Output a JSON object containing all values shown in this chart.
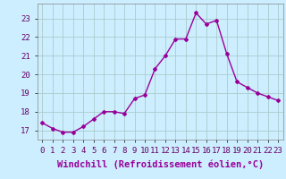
{
  "x": [
    0,
    1,
    2,
    3,
    4,
    5,
    6,
    7,
    8,
    9,
    10,
    11,
    12,
    13,
    14,
    15,
    16,
    17,
    18,
    19,
    20,
    21,
    22,
    23
  ],
  "y": [
    17.4,
    17.1,
    16.9,
    16.9,
    17.2,
    17.6,
    18.0,
    18.0,
    17.9,
    18.7,
    18.9,
    20.3,
    21.0,
    21.9,
    21.9,
    23.3,
    22.7,
    22.9,
    21.1,
    19.6,
    19.3,
    19.0,
    18.8,
    18.6
  ],
  "line_color": "#990099",
  "marker": "D",
  "marker_size": 2,
  "bg_color": "#cceeff",
  "grid_color": "#aacccc",
  "xlabel": "Windchill (Refroidissement éolien,°C)",
  "xlabel_fontsize": 7.5,
  "ylim": [
    16.5,
    23.8
  ],
  "xlim": [
    -0.5,
    23.5
  ],
  "yticks": [
    17,
    18,
    19,
    20,
    21,
    22,
    23
  ],
  "xticks": [
    0,
    1,
    2,
    3,
    4,
    5,
    6,
    7,
    8,
    9,
    10,
    11,
    12,
    13,
    14,
    15,
    16,
    17,
    18,
    19,
    20,
    21,
    22,
    23
  ],
  "tick_fontsize": 6.5,
  "linewidth": 1.0
}
